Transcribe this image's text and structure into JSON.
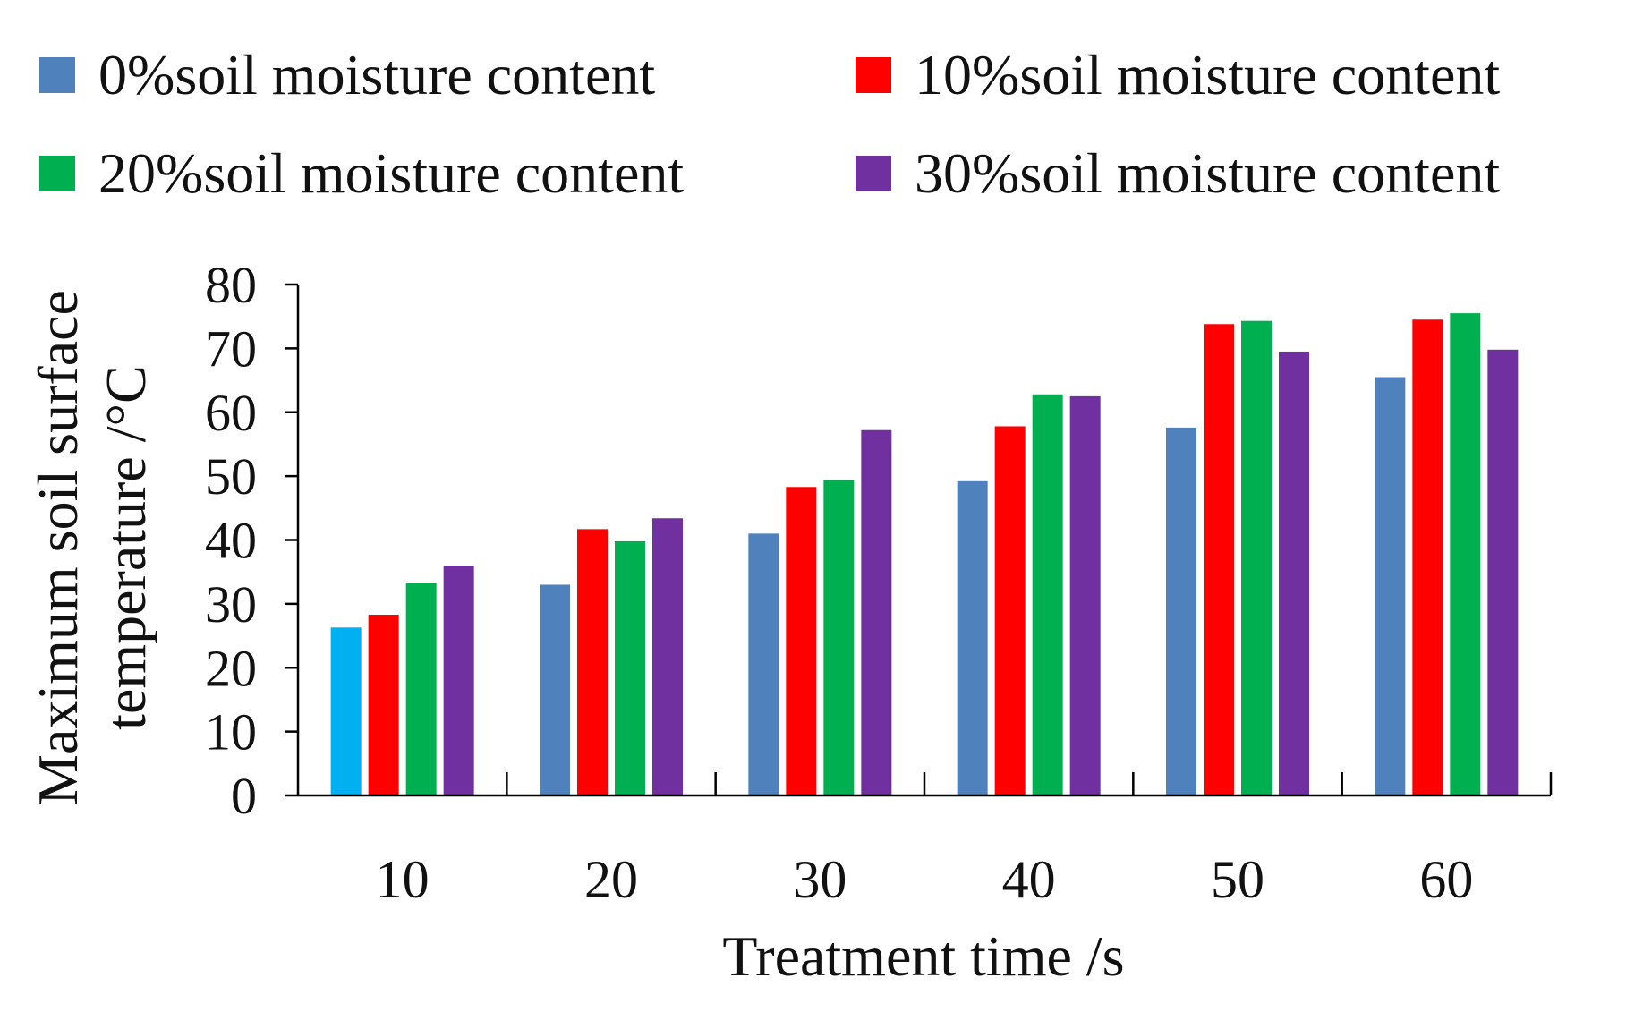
{
  "chart_data": {
    "type": "bar",
    "title": "",
    "xlabel": "Treatment time /s",
    "ylabel_lines": [
      "Maximum soil surface",
      "temperature /°C"
    ],
    "categories": [
      "10",
      "20",
      "30",
      "40",
      "50",
      "60"
    ],
    "ylim": [
      0,
      80
    ],
    "yticks": [
      "0",
      "10",
      "20",
      "30",
      "40",
      "50",
      "60",
      "70",
      "80"
    ],
    "grid": false,
    "legend_position": "top",
    "series": [
      {
        "name": "0%soil moisture content",
        "color": "#4f81bd",
        "values": [
          26.3,
          33.0,
          41.0,
          49.2,
          57.6,
          65.5
        ]
      },
      {
        "name": "10%soil moisture content",
        "color": "#ff0000",
        "values": [
          28.3,
          41.7,
          48.3,
          57.8,
          73.8,
          74.5
        ]
      },
      {
        "name": "20%soil moisture content",
        "color": "#00b050",
        "values": [
          33.3,
          39.8,
          49.4,
          62.8,
          74.3,
          75.5
        ]
      },
      {
        "name": "30%soil moisture content",
        "color": "#7030a0",
        "values": [
          36.0,
          43.4,
          57.2,
          62.5,
          69.5,
          69.8
        ]
      }
    ],
    "highlight_color": "#00b0f0"
  }
}
